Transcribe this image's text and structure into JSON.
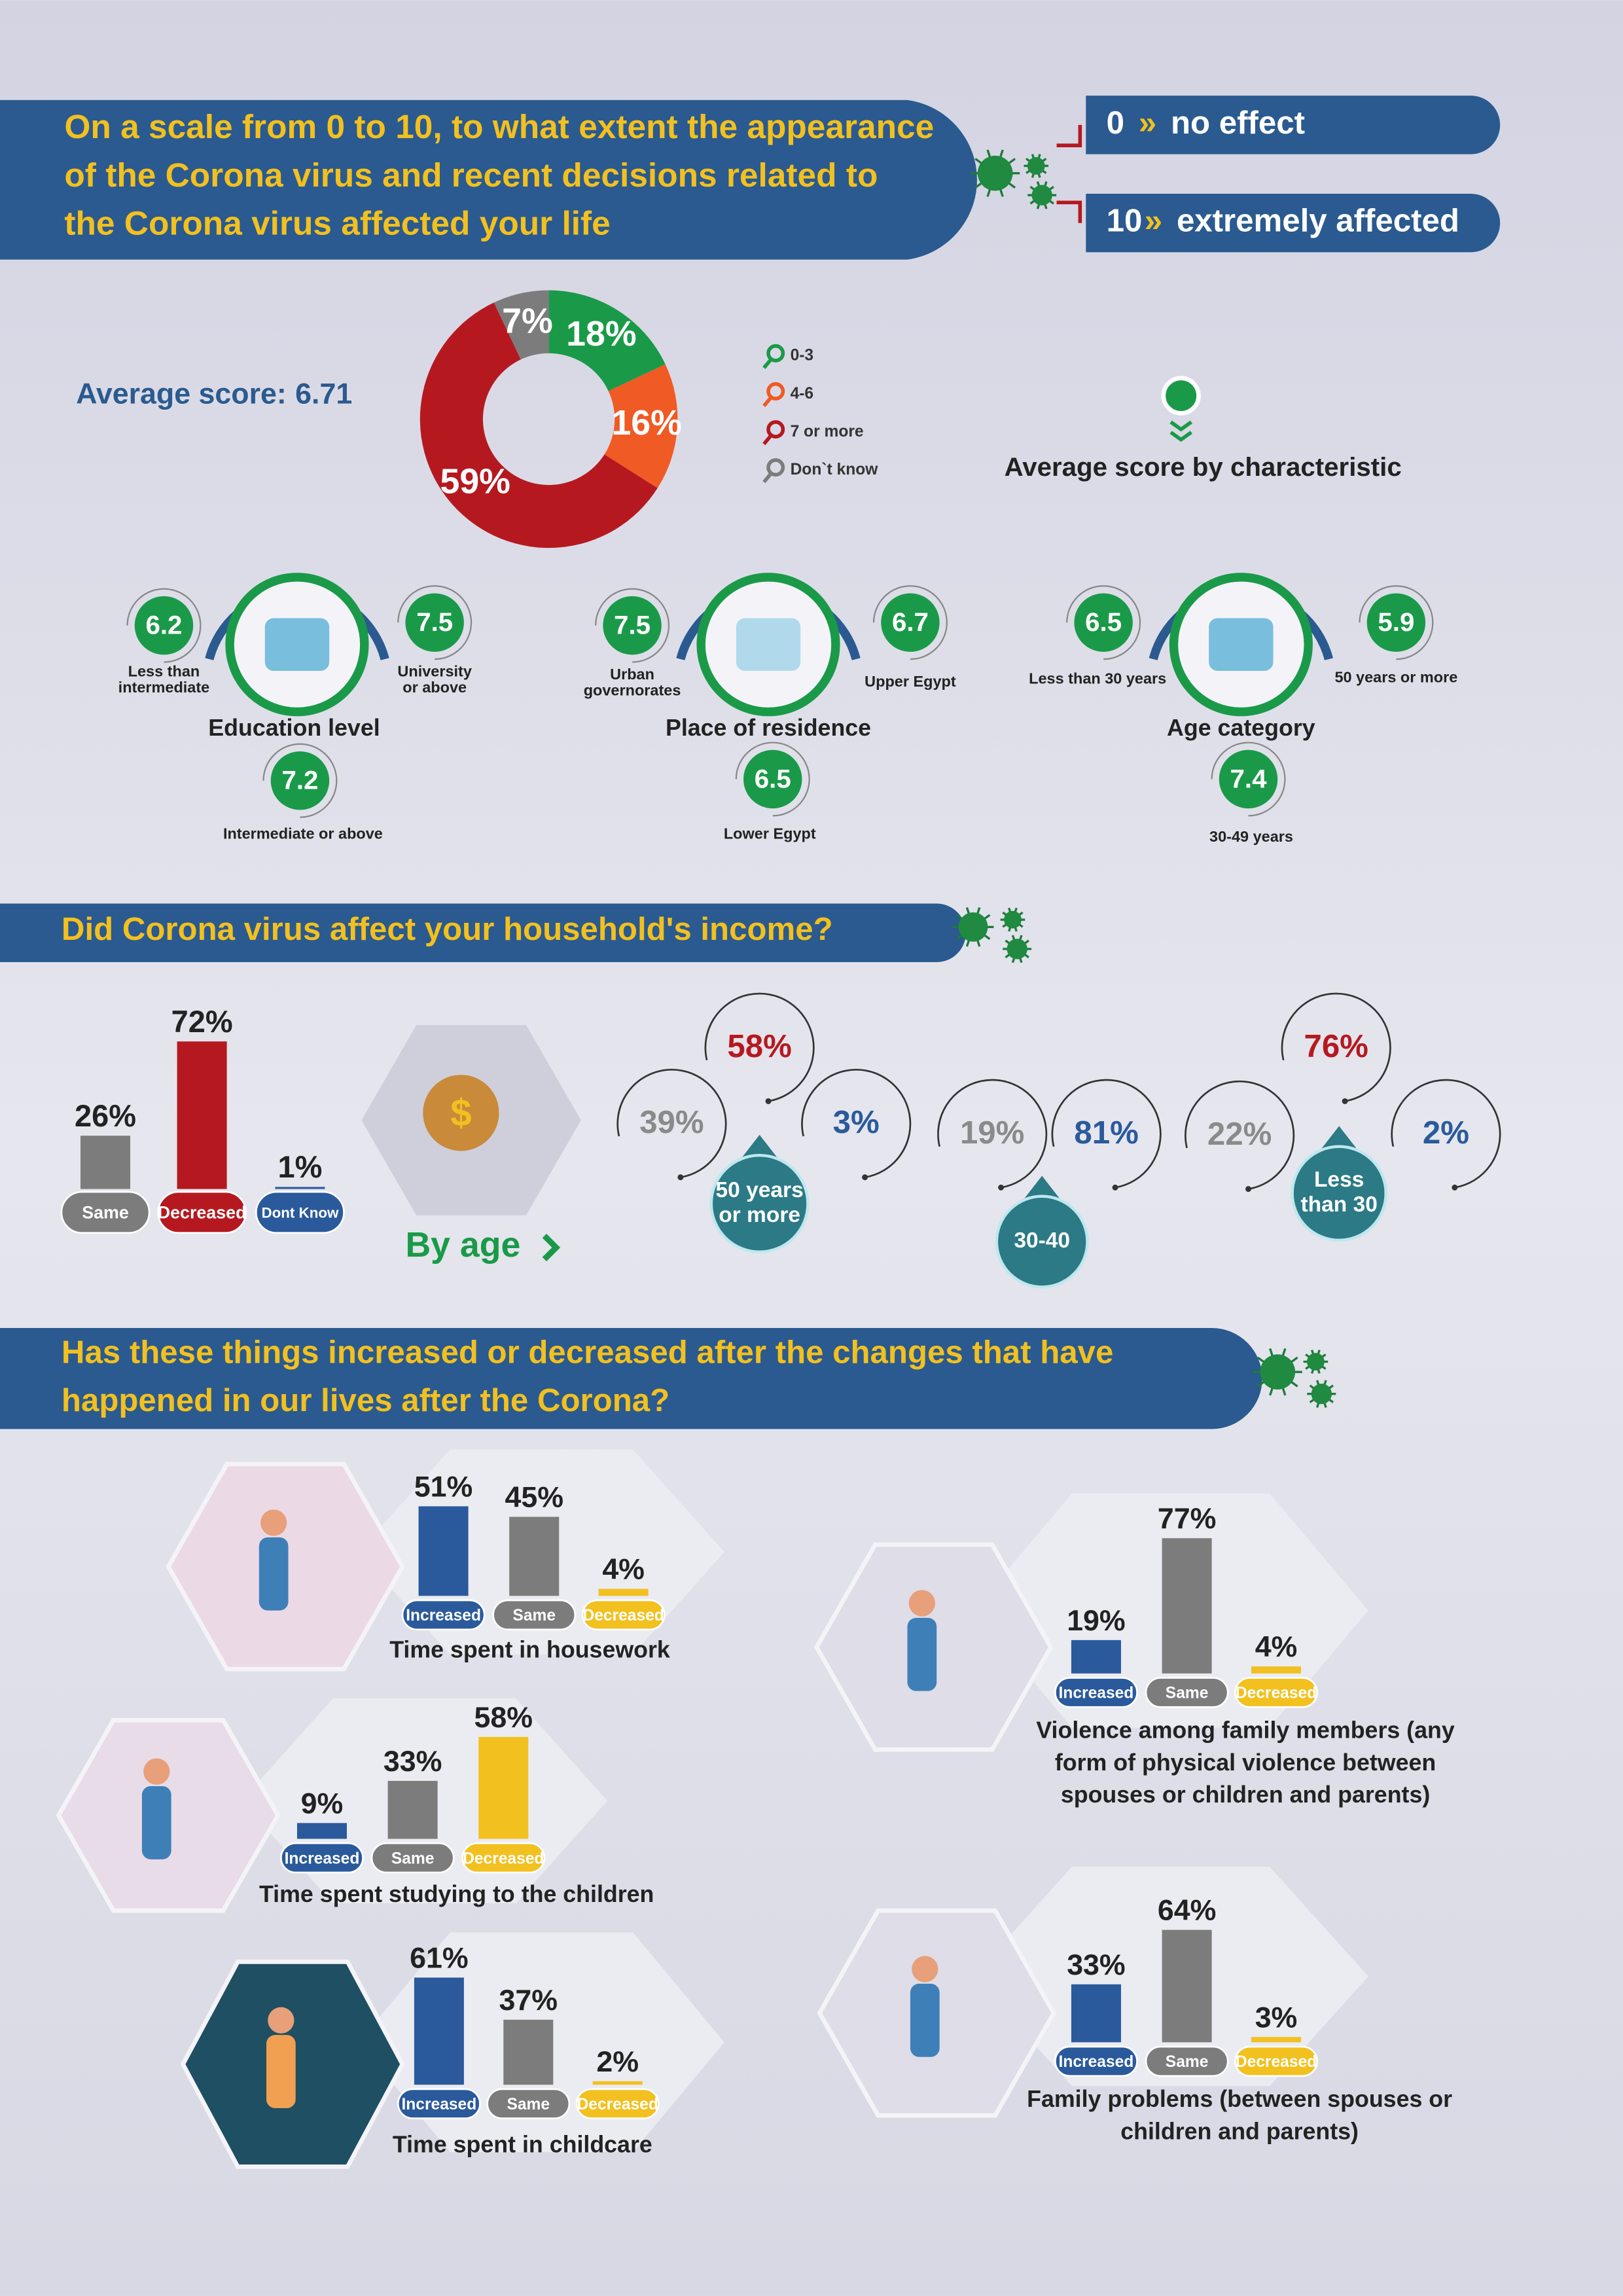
{
  "header1": {
    "title_lines": [
      "On a scale from 0 to 10, to what extent the appearance",
      "of the Corona virus and recent decisions related to",
      "the Corona virus affected your life"
    ]
  },
  "scale": [
    {
      "value": "0",
      "meaning": "no effect"
    },
    {
      "value": "10",
      "meaning": "extremely affected"
    }
  ],
  "average_score": {
    "label": "Average score:",
    "value": 6.71
  },
  "distribution": {
    "type": "pie",
    "categories": [
      "0-3",
      "4-6",
      "7 or more",
      "Don`t know"
    ],
    "values": [
      18,
      16,
      59,
      7
    ],
    "value_labels": [
      "18%",
      "16%",
      "59%",
      "7%"
    ],
    "colors": [
      "#1a9a48",
      "#f05a24",
      "#b5191f",
      "#7c7c7c"
    ]
  },
  "by_characteristic": {
    "title": "Average score by characteristic",
    "groups": [
      {
        "name": "Education level",
        "items": [
          {
            "label_lines": [
              "Less than",
              "intermediate"
            ],
            "value": 6.2
          },
          {
            "label_lines": [
              "University",
              "or above"
            ],
            "value": 7.5
          },
          {
            "label_lines": [
              "Intermediate or above"
            ],
            "value": 7.2
          }
        ]
      },
      {
        "name": "Place of residence",
        "items": [
          {
            "label_lines": [
              "Urban",
              "governorates"
            ],
            "value": 7.5
          },
          {
            "label_lines": [
              "Upper Egypt"
            ],
            "value": 6.7
          },
          {
            "label_lines": [
              "Lower Egypt"
            ],
            "value": 6.5
          }
        ]
      },
      {
        "name": "Age category",
        "items": [
          {
            "label_lines": [
              "Less than 30 years"
            ],
            "value": 6.5
          },
          {
            "label_lines": [
              "50 years or more"
            ],
            "value": 5.9
          },
          {
            "label_lines": [
              "30-49 years"
            ],
            "value": 7.4
          }
        ]
      }
    ]
  },
  "income": {
    "title": "Did Corona virus affect your household's income?",
    "type": "bar",
    "categories": [
      "Same",
      "Decreased",
      "Dont Know"
    ],
    "values": [
      26,
      72,
      1
    ],
    "value_labels": [
      "26%",
      "72%",
      "1%"
    ],
    "colors": [
      "#7c7c7c",
      "#b5191f",
      "#2a5a9b"
    ],
    "by_age_label": "By age",
    "age_groups": [
      {
        "name_lines": [
          "50 years",
          "or more"
        ],
        "values": [
          39,
          58,
          3
        ],
        "value_labels": [
          "39%",
          "58%",
          "3%"
        ],
        "colors": [
          "#8a8a8a",
          "#b5191f",
          "#2a5a9b"
        ]
      },
      {
        "name_lines": [
          "30-40"
        ],
        "values": [
          19,
          81
        ],
        "value_labels": [
          "19%",
          "81%"
        ],
        "colors": [
          "#8a8a8a",
          "#2a5a9b"
        ]
      },
      {
        "name_lines": [
          "Less",
          "than 30"
        ],
        "values": [
          22,
          76,
          2
        ],
        "value_labels": [
          "22%",
          "76%",
          "2%"
        ],
        "colors": [
          "#8a8a8a",
          "#b5191f",
          "#2a5a9b"
        ]
      }
    ]
  },
  "changes": {
    "title_lines": [
      "Has these things increased or decreased after the changes that have",
      "happened in our lives after the Corona?"
    ],
    "type": "bar",
    "categories": [
      "Increased",
      "Same",
      "Decreased"
    ],
    "colors": [
      "#2a5a9b",
      "#7c7c7c",
      "#f2c01f"
    ],
    "charts": [
      {
        "title_lines": [
          "Time spent in housework"
        ],
        "values": [
          51,
          45,
          4
        ],
        "value_labels": [
          "51%",
          "45%",
          "4%"
        ]
      },
      {
        "title_lines": [
          "Time spent studying to the children"
        ],
        "values": [
          9,
          33,
          58
        ],
        "value_labels": [
          "9%",
          "33%",
          "58%"
        ]
      },
      {
        "title_lines": [
          "Time spent in childcare"
        ],
        "values": [
          61,
          37,
          2
        ],
        "value_labels": [
          "61%",
          "37%",
          "2%"
        ]
      },
      {
        "title_lines": [
          "Violence among family members (any",
          "form of physical violence between",
          "spouses or children and parents)"
        ],
        "values": [
          19,
          77,
          4
        ],
        "value_labels": [
          "19%",
          "77%",
          "4%"
        ]
      },
      {
        "title_lines": [
          "Family problems (between spouses or",
          "children and parents)"
        ],
        "values": [
          33,
          64,
          3
        ],
        "value_labels": [
          "33%",
          "64%",
          "3%"
        ]
      }
    ]
  }
}
